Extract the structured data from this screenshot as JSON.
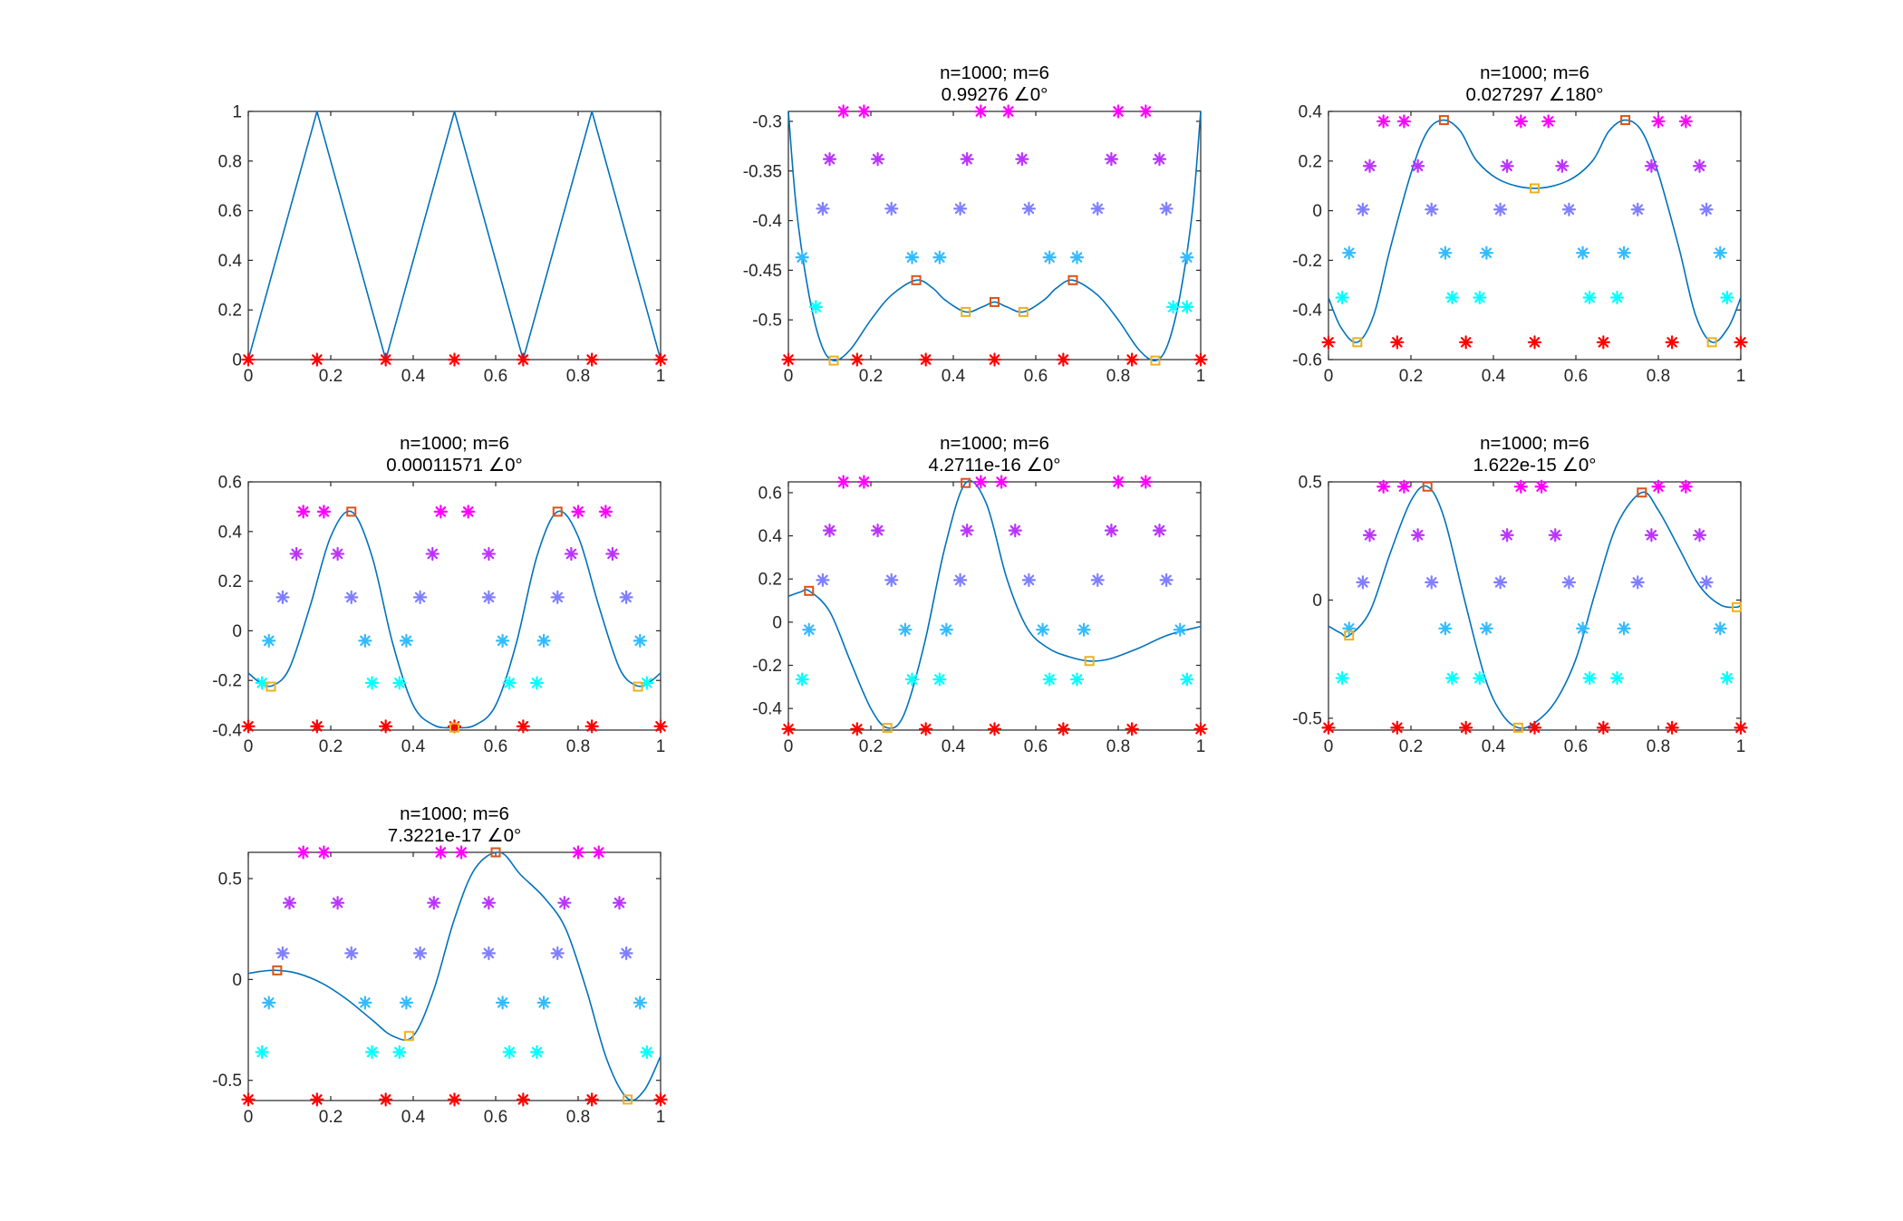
{
  "figure": {
    "background": "#ffffff"
  },
  "colors": {
    "curve": "#0072BD",
    "levels": [
      "#ff0000",
      "#00ffff",
      "#33bbff",
      "#7f7fff",
      "#bb33ff",
      "#ff00ff"
    ],
    "max_marker": "#D95319",
    "min_marker": "#EDB120"
  },
  "chart_data": [
    {
      "type": "line",
      "title": [],
      "xlim": [
        0,
        1
      ],
      "ylim": [
        0,
        1
      ],
      "xticks": [
        0,
        0.2,
        0.4,
        0.6,
        0.8,
        1
      ],
      "xtick_labels": [
        "0",
        "0.2",
        "0.4",
        "0.6",
        "0.8",
        "1"
      ],
      "yticks": [
        0,
        0.2,
        0.4,
        0.6,
        0.8,
        1
      ],
      "ytick_labels": [
        "0",
        "0.2",
        "0.4",
        "0.6",
        "0.8",
        "1"
      ],
      "curve": {
        "x": [
          0,
          0.1667,
          0.3333,
          0.5,
          0.6667,
          0.8333,
          1
        ],
        "y": [
          0,
          1,
          0,
          1,
          0,
          1,
          0
        ]
      },
      "star_levels": [
        0
      ],
      "stars": [
        [
          0,
          0.1667,
          0.3333,
          0.5,
          0.6667,
          0.8333,
          1
        ]
      ],
      "maxima": [],
      "minima": []
    },
    {
      "type": "line",
      "title": [
        "n=1000; m=6",
        "0.99276 ∠0°"
      ],
      "xlim": [
        0,
        1
      ],
      "ylim": [
        -0.54,
        -0.29
      ],
      "xticks": [
        0,
        0.2,
        0.4,
        0.6,
        0.8,
        1
      ],
      "xtick_labels": [
        "0",
        "0.2",
        "0.4",
        "0.6",
        "0.8",
        "1"
      ],
      "yticks": [
        -0.5,
        -0.45,
        -0.4,
        -0.35,
        -0.3
      ],
      "ytick_labels": [
        "-0.5",
        "-0.45",
        "-0.4",
        "-0.35",
        "-0.3"
      ],
      "curve": {
        "x": [
          0,
          0.02,
          0.05,
          0.08,
          0.11,
          0.15,
          0.2,
          0.25,
          0.31,
          0.35,
          0.38,
          0.43,
          0.47,
          0.5,
          0.53,
          0.57,
          0.62,
          0.65,
          0.69,
          0.75,
          0.8,
          0.85,
          0.89,
          0.92,
          0.95,
          0.98,
          1
        ],
        "y": [
          -0.29,
          -0.39,
          -0.475,
          -0.525,
          -0.541,
          -0.53,
          -0.5,
          -0.475,
          -0.46,
          -0.468,
          -0.48,
          -0.492,
          -0.487,
          -0.482,
          -0.487,
          -0.492,
          -0.48,
          -0.468,
          -0.46,
          -0.475,
          -0.5,
          -0.53,
          -0.541,
          -0.525,
          -0.475,
          -0.39,
          -0.29
        ]
      },
      "star_levels": [
        -0.54,
        -0.487,
        -0.437,
        -0.388,
        -0.338,
        -0.29
      ],
      "stars": [
        [
          0,
          0.1667,
          0.3333,
          0.5,
          0.6667,
          0.8333,
          1
        ],
        [
          0.0667,
          0.9333
        ],
        [
          0.0333,
          0.3,
          0.3667,
          0.6333,
          0.7,
          0.9667
        ],
        [
          0.0833,
          0.25,
          0.4167,
          0.5833,
          0.75,
          0.9167
        ],
        [
          0.1,
          0.2167,
          0.4333,
          0.5667,
          0.7833,
          0.9
        ],
        [
          0.1333,
          0.1833,
          0.4667,
          0.5333,
          0.8,
          0.8667
        ]
      ],
      "stars_extra": [
        [
          0.9667,
          -0.487
        ]
      ],
      "maxima": [
        [
          0.31,
          -0.46
        ],
        [
          0.5,
          -0.482
        ],
        [
          0.69,
          -0.46
        ]
      ],
      "minima": [
        [
          0.11,
          -0.541
        ],
        [
          0.43,
          -0.492
        ],
        [
          0.57,
          -0.492
        ],
        [
          0.89,
          -0.541
        ]
      ]
    },
    {
      "type": "line",
      "title": [
        "n=1000; m=6",
        "0.027297 ∠180°"
      ],
      "xlim": [
        0,
        1
      ],
      "ylim": [
        -0.6,
        0.4
      ],
      "xticks": [
        0,
        0.2,
        0.4,
        0.6,
        0.8,
        1
      ],
      "xtick_labels": [
        "0",
        "0.2",
        "0.4",
        "0.6",
        "0.8",
        "1"
      ],
      "yticks": [
        -0.6,
        -0.4,
        -0.2,
        0,
        0.2,
        0.4
      ],
      "ytick_labels": [
        "-0.6",
        "-0.4",
        "-0.2",
        "0",
        "0.2",
        "0.4"
      ],
      "curve": {
        "x": [
          0,
          0.03,
          0.07,
          0.11,
          0.15,
          0.2,
          0.24,
          0.28,
          0.32,
          0.36,
          0.42,
          0.5,
          0.58,
          0.64,
          0.68,
          0.72,
          0.76,
          0.8,
          0.85,
          0.89,
          0.93,
          0.97,
          1
        ],
        "y": [
          -0.35,
          -0.47,
          -0.53,
          -0.42,
          -0.15,
          0.15,
          0.32,
          0.365,
          0.32,
          0.2,
          0.12,
          0.09,
          0.12,
          0.2,
          0.32,
          0.365,
          0.32,
          0.15,
          -0.15,
          -0.42,
          -0.53,
          -0.47,
          -0.35
        ]
      },
      "star_levels": [
        -0.53,
        -0.35,
        -0.17,
        0.005,
        0.18,
        0.36
      ],
      "stars": [
        [
          0,
          0.1667,
          0.3333,
          0.5,
          0.6667,
          0.8333,
          1
        ],
        [
          0.0333,
          0.3,
          0.3667,
          0.6333,
          0.7,
          0.9667
        ],
        [
          0.05,
          0.2833,
          0.3833,
          0.6167,
          0.7167,
          0.95
        ],
        [
          0.0833,
          0.25,
          0.4167,
          0.5833,
          0.75,
          0.9167
        ],
        [
          0.1,
          0.2167,
          0.4333,
          0.5667,
          0.7833,
          0.9
        ],
        [
          0.1333,
          0.1833,
          0.4667,
          0.5333,
          0.8,
          0.8667
        ]
      ],
      "maxima": [
        [
          0.28,
          0.365
        ],
        [
          0.72,
          0.365
        ]
      ],
      "minima": [
        [
          0.07,
          -0.53
        ],
        [
          0.5,
          0.09
        ],
        [
          0.93,
          -0.53
        ]
      ]
    },
    {
      "type": "line",
      "title": [
        "n=1000; m=6",
        "0.00011571 ∠0°"
      ],
      "xlim": [
        0,
        1
      ],
      "ylim": [
        -0.4,
        0.6
      ],
      "xticks": [
        0,
        0.2,
        0.4,
        0.6,
        0.8,
        1
      ],
      "xtick_labels": [
        "0",
        "0.2",
        "0.4",
        "0.6",
        "0.8",
        "1"
      ],
      "yticks": [
        -0.4,
        -0.2,
        0,
        0.2,
        0.4,
        0.6
      ],
      "ytick_labels": [
        "-0.4",
        "-0.2",
        "0",
        "0.2",
        "0.4",
        "0.6"
      ],
      "curve": {
        "x": [
          0,
          0.03,
          0.06,
          0.1,
          0.15,
          0.2,
          0.25,
          0.3,
          0.35,
          0.4,
          0.45,
          0.5,
          0.55,
          0.6,
          0.65,
          0.7,
          0.75,
          0.8,
          0.85,
          0.9,
          0.94,
          0.97,
          1
        ],
        "y": [
          -0.17,
          -0.21,
          -0.22,
          -0.15,
          0.1,
          0.38,
          0.48,
          0.3,
          -0.05,
          -0.3,
          -0.38,
          -0.39,
          -0.38,
          -0.3,
          -0.05,
          0.3,
          0.48,
          0.38,
          0.1,
          -0.15,
          -0.22,
          -0.21,
          -0.17
        ]
      },
      "star_levels": [
        -0.385,
        -0.21,
        -0.04,
        0.135,
        0.31,
        0.48
      ],
      "stars": [
        [
          0,
          0.1667,
          0.3333,
          0.5,
          0.6667,
          0.8333,
          1
        ],
        [
          0.0333,
          0.3,
          0.3667,
          0.6333,
          0.7,
          0.9667
        ],
        [
          0.05,
          0.2833,
          0.3833,
          0.6167,
          0.7167,
          0.95
        ],
        [
          0.0833,
          0.25,
          0.4167,
          0.5833,
          0.75,
          0.9167
        ],
        [
          0.1167,
          0.2167,
          0.4467,
          0.5833,
          0.7833,
          0.8833
        ],
        [
          0.1333,
          0.1833,
          0.4667,
          0.5333,
          0.8,
          0.8667
        ]
      ],
      "maxima": [
        [
          0.25,
          0.48
        ],
        [
          0.75,
          0.48
        ]
      ],
      "minima": [
        [
          0.055,
          -0.225
        ],
        [
          0.5,
          -0.39
        ],
        [
          0.945,
          -0.225
        ]
      ]
    },
    {
      "type": "line",
      "title": [
        "n=1000; m=6",
        "4.2711e-16 ∠0°"
      ],
      "xlim": [
        0,
        1
      ],
      "ylim": [
        -0.5,
        0.65
      ],
      "xticks": [
        0,
        0.2,
        0.4,
        0.6,
        0.8,
        1
      ],
      "xtick_labels": [
        "0",
        "0.2",
        "0.4",
        "0.6",
        "0.8",
        "1"
      ],
      "yticks": [
        -0.4,
        -0.2,
        0,
        0.2,
        0.4,
        0.6
      ],
      "ytick_labels": [
        "-0.4",
        "-0.2",
        "0",
        "0.2",
        "0.4",
        "0.6"
      ],
      "curve": {
        "x": [
          0,
          0.03,
          0.05,
          0.1,
          0.15,
          0.2,
          0.24,
          0.28,
          0.33,
          0.38,
          0.43,
          0.48,
          0.53,
          0.58,
          0.63,
          0.68,
          0.73,
          0.78,
          0.85,
          0.92,
          1
        ],
        "y": [
          0.12,
          0.14,
          0.145,
          0.05,
          -0.18,
          -0.4,
          -0.49,
          -0.43,
          -0.1,
          0.35,
          0.645,
          0.55,
          0.2,
          -0.03,
          -0.12,
          -0.16,
          -0.18,
          -0.17,
          -0.12,
          -0.06,
          -0.02
        ]
      },
      "star_levels": [
        -0.495,
        -0.265,
        -0.035,
        0.195,
        0.425,
        0.65
      ],
      "stars": [
        [
          0,
          0.1667,
          0.3333,
          0.5,
          0.6667,
          0.8333,
          1
        ],
        [
          0.0333,
          0.3,
          0.3667,
          0.6333,
          0.7,
          0.9667
        ],
        [
          0.05,
          0.2833,
          0.3833,
          0.6167,
          0.7167,
          0.95
        ],
        [
          0.0833,
          0.25,
          0.4167,
          0.5833,
          0.75,
          0.9167
        ],
        [
          0.1,
          0.2167,
          0.4333,
          0.55,
          0.7833,
          0.9
        ],
        [
          0.1333,
          0.1833,
          0.4667,
          0.5167,
          0.8,
          0.8667
        ]
      ],
      "maxima": [
        [
          0.05,
          0.145
        ],
        [
          0.43,
          0.645
        ]
      ],
      "minima": [
        [
          0.24,
          -0.49
        ],
        [
          0.73,
          -0.18
        ]
      ]
    },
    {
      "type": "line",
      "title": [
        "n=1000; m=6",
        "1.622e-15 ∠0°"
      ],
      "xlim": [
        0,
        1
      ],
      "ylim": [
        -0.55,
        0.5
      ],
      "xticks": [
        0,
        0.2,
        0.4,
        0.6,
        0.8,
        1
      ],
      "xtick_labels": [
        "0",
        "0.2",
        "0.4",
        "0.6",
        "0.8",
        "1"
      ],
      "yticks": [
        -0.5,
        0,
        0.5
      ],
      "ytick_labels": [
        "-0.5",
        "0",
        "0.5"
      ],
      "curve": {
        "x": [
          0,
          0.03,
          0.05,
          0.1,
          0.15,
          0.2,
          0.24,
          0.28,
          0.33,
          0.38,
          0.42,
          0.46,
          0.5,
          0.55,
          0.6,
          0.65,
          0.7,
          0.76,
          0.8,
          0.85,
          0.9,
          0.95,
          0.99,
          1
        ],
        "y": [
          -0.11,
          -0.14,
          -0.15,
          -0.05,
          0.2,
          0.42,
          0.48,
          0.35,
          0.0,
          -0.33,
          -0.48,
          -0.54,
          -0.52,
          -0.43,
          -0.25,
          0.05,
          0.32,
          0.455,
          0.38,
          0.22,
          0.06,
          -0.02,
          -0.03,
          -0.02
        ]
      },
      "star_levels": [
        -0.54,
        -0.33,
        -0.12,
        0.075,
        0.275,
        0.48
      ],
      "stars": [
        [
          0,
          0.1667,
          0.3333,
          0.5,
          0.6667,
          0.8333,
          1
        ],
        [
          0.0333,
          0.3,
          0.3667,
          0.6333,
          0.7,
          0.9667
        ],
        [
          0.05,
          0.2833,
          0.3833,
          0.6167,
          0.7167,
          0.95
        ],
        [
          0.0833,
          0.25,
          0.4167,
          0.5833,
          0.75,
          0.9167
        ],
        [
          0.1,
          0.2167,
          0.4333,
          0.55,
          0.7833,
          0.9
        ],
        [
          0.1333,
          0.1833,
          0.4667,
          0.5167,
          0.8,
          0.8667
        ]
      ],
      "maxima": [
        [
          0.24,
          0.48
        ],
        [
          0.76,
          0.455
        ]
      ],
      "minima": [
        [
          0.05,
          -0.15
        ],
        [
          0.46,
          -0.54
        ],
        [
          0.99,
          -0.03
        ]
      ]
    },
    {
      "type": "line",
      "title": [
        "n=1000; m=6",
        "7.3221e-17 ∠0°"
      ],
      "xlim": [
        0,
        1
      ],
      "ylim": [
        -0.6,
        0.63
      ],
      "xticks": [
        0,
        0.2,
        0.4,
        0.6,
        0.8,
        1
      ],
      "xtick_labels": [
        "0",
        "0.2",
        "0.4",
        "0.6",
        "0.8",
        "1"
      ],
      "yticks": [
        -0.5,
        0,
        0.5
      ],
      "ytick_labels": [
        "-0.5",
        "0",
        "0.5"
      ],
      "curve": {
        "x": [
          0,
          0.03,
          0.07,
          0.12,
          0.18,
          0.24,
          0.3,
          0.35,
          0.4,
          0.45,
          0.5,
          0.55,
          0.61,
          0.66,
          0.72,
          0.77,
          0.82,
          0.87,
          0.92,
          0.96,
          1
        ],
        "y": [
          0.03,
          0.04,
          0.045,
          0.03,
          -0.02,
          -0.1,
          -0.2,
          -0.28,
          -0.28,
          -0.05,
          0.3,
          0.55,
          0.63,
          0.52,
          0.4,
          0.25,
          -0.05,
          -0.4,
          -0.59,
          -0.55,
          -0.38
        ]
      },
      "star_levels": [
        -0.595,
        -0.36,
        -0.115,
        0.13,
        0.38,
        0.63
      ],
      "stars": [
        [
          0,
          0.1667,
          0.3333,
          0.5,
          0.6667,
          0.8333,
          1
        ],
        [
          0.0333,
          0.3,
          0.3667,
          0.6333,
          0.7,
          0.9667
        ],
        [
          0.05,
          0.2833,
          0.3833,
          0.6167,
          0.7167,
          0.95
        ],
        [
          0.0833,
          0.25,
          0.4167,
          0.5833,
          0.75,
          0.9167
        ],
        [
          0.1,
          0.2167,
          0.45,
          0.5833,
          0.7667,
          0.9
        ],
        [
          0.1333,
          0.1833,
          0.4667,
          0.5167,
          0.8,
          0.85
        ]
      ],
      "maxima": [
        [
          0.07,
          0.045
        ],
        [
          0.6,
          0.63
        ]
      ],
      "minima": [
        [
          0.39,
          -0.28
        ],
        [
          0.92,
          -0.595
        ]
      ]
    }
  ]
}
